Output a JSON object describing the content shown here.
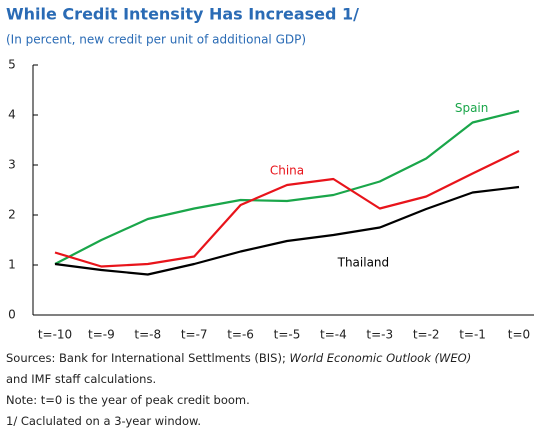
{
  "chart_data": {
    "type": "line",
    "title": "While Credit Intensity Has Increased 1/",
    "subtitle": "(In percent, new credit per unit of additional GDP)",
    "categories": [
      "t=-10",
      "t=-9",
      "t=-8",
      "t=-7",
      "t=-6",
      "t=-5",
      "t=-4",
      "t=-3",
      "t=-2",
      "t=-1",
      "t=0"
    ],
    "series": [
      {
        "name": "Spain",
        "color": "#1aa64a",
        "values": [
          1.02,
          1.5,
          1.92,
          2.13,
          2.3,
          2.28,
          2.4,
          2.67,
          3.13,
          3.85,
          4.08
        ]
      },
      {
        "name": "China",
        "color": "#e8141b",
        "values": [
          1.25,
          0.97,
          1.02,
          1.17,
          2.2,
          2.6,
          2.72,
          2.13,
          2.37,
          2.83,
          3.28
        ]
      },
      {
        "name": "Thailand",
        "color": "#000000",
        "values": [
          1.02,
          0.9,
          0.81,
          1.02,
          1.27,
          1.48,
          1.6,
          1.75,
          2.12,
          2.45,
          2.56
        ]
      }
    ],
    "ylim": [
      0,
      5
    ],
    "yticks": [
      0,
      1,
      2,
      3,
      4,
      5
    ],
    "grid": false
  },
  "notes": {
    "sources": [
      "Sources: Bank for International Settlments (BIS); ",
      "World Economic Outlook (WEO)",
      "and IMF staff calculations."
    ],
    "note": "Note: t=0 is the year of peak credit boom.",
    "footnote": "1/ Caclulated on a 3-year window."
  }
}
